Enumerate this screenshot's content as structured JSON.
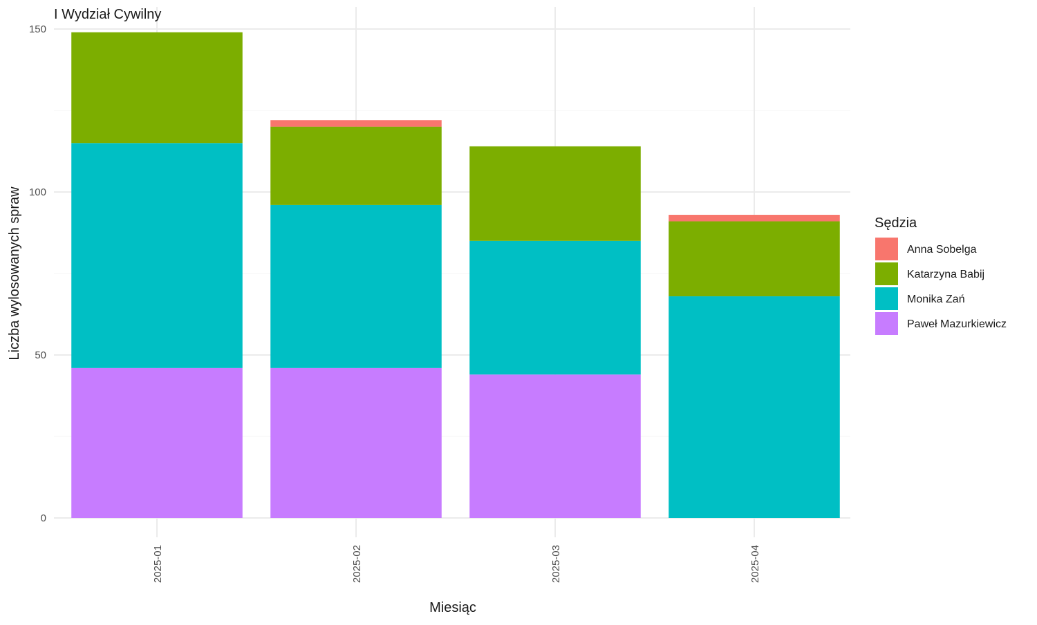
{
  "chart_data": {
    "type": "bar",
    "stacked": true,
    "title": "I Wydział Cywilny",
    "xlabel": "Miesiąc",
    "ylabel": "Liczba wylosowanych spraw",
    "categories": [
      "2025-01",
      "2025-02",
      "2025-03",
      "2025-04"
    ],
    "ylim": [
      0,
      150
    ],
    "y_ticks": [
      0,
      50,
      100,
      150
    ],
    "grid": true,
    "legend_title": "Sędzia",
    "legend_position": "right",
    "series": [
      {
        "name": "Paweł Mazurkiewicz",
        "color": "#C77CFF",
        "values": [
          46,
          46,
          44,
          0
        ]
      },
      {
        "name": "Monika Zań",
        "color": "#00BFC4",
        "values": [
          69,
          50,
          41,
          68
        ]
      },
      {
        "name": "Katarzyna Babij",
        "color": "#7CAE00",
        "values": [
          34,
          24,
          29,
          23
        ]
      },
      {
        "name": "Anna Sobelga",
        "color": "#F8766D",
        "values": [
          0,
          2,
          0,
          2
        ]
      }
    ],
    "legend_order": [
      "Anna Sobelga",
      "Katarzyna Babij",
      "Monika Zań",
      "Paweł Mazurkiewicz"
    ]
  }
}
